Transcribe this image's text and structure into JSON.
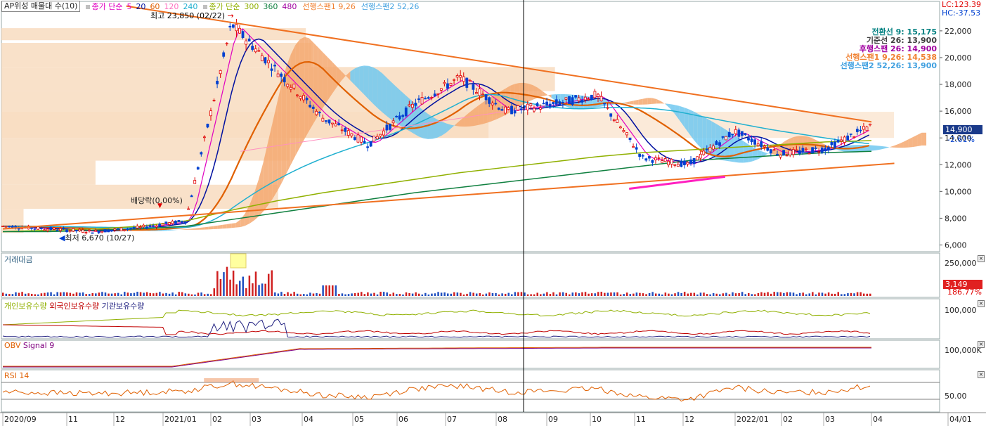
{
  "header": {
    "title": "AP위성 매물대 수(10)",
    "ma_label": "종가 단순",
    "ma_periods": [
      {
        "label": "5",
        "color": "#e000c0"
      },
      {
        "label": "20",
        "color": "#0010a0"
      },
      {
        "label": "60",
        "color": "#e06000"
      },
      {
        "label": "120",
        "color": "#ff70c0"
      },
      {
        "label": "240",
        "color": "#20b0d0"
      }
    ],
    "ma2_label": "종가 단순",
    "ma2_periods": [
      {
        "label": "300",
        "color": "#90b000"
      },
      {
        "label": "360",
        "color": "#108040"
      },
      {
        "label": "480",
        "color": "#a000a0"
      }
    ],
    "span1": "선행스팬1 9,26",
    "span2": "선행스팬2 52,26"
  },
  "ichimoku_legend": [
    {
      "text": "전환선 9: 15,175",
      "color": "#008080"
    },
    {
      "text": "기준선 26: 13,900",
      "color": "#404040"
    },
    {
      "text": "후행스팬 26: 14,900",
      "color": "#a000a0"
    },
    {
      "text": "선행스팬1 9,26: 14,538",
      "color": "#f08030"
    },
    {
      "text": "선행스팬2 52,26: 13,900",
      "color": "#40a0e0"
    }
  ],
  "top_right": {
    "lc": "LC:123.39",
    "hc": "HC:-37.53"
  },
  "annotations": {
    "high": "최고 23,850 (02/22)",
    "low": "최저 6,670 (10/27)",
    "dividend": "배당락(0.00%)"
  },
  "price_tag": {
    "price": "14,900",
    "change": "-2.61%"
  },
  "volume_tag": {
    "value": "3,149",
    "change": "186.77%"
  },
  "panels": {
    "volume": "거래대금",
    "holders": [
      {
        "text": "개인보유수량",
        "color": "#90b000"
      },
      {
        "text": "외국인보유수량",
        "color": "#c00000"
      },
      {
        "text": "기관보유수량",
        "color": "#202080"
      }
    ],
    "obv": [
      {
        "text": "OBV",
        "color": "#e06000"
      },
      {
        "text": "Signal 9",
        "color": "#800080"
      }
    ],
    "rsi": "RSI 14"
  },
  "colors": {
    "up": "#e00000",
    "down": "#0040d0",
    "span1": "#f08030",
    "span2": "#40a0e0"
  },
  "chart_data": {
    "type": "line",
    "title": "AP위성",
    "x_tick_labels": [
      "2020/09",
      "11",
      "12",
      "2021/01",
      "02",
      "03",
      "04",
      "05",
      "06",
      "07",
      "08",
      "09",
      "10",
      "11",
      "12",
      "2022/01",
      "02",
      "03",
      "04",
      "04/01"
    ],
    "price_axis": {
      "ticks": [
        "22,000",
        "20,000",
        "18,000",
        "16,000",
        "14,000",
        "12,000",
        "10,000",
        "8,000",
        "6,000"
      ],
      "range": [
        5500,
        24200
      ]
    },
    "volume_axis": {
      "ticks": [
        "250,000"
      ]
    },
    "holders_axis": {
      "ticks": [
        "100,000"
      ]
    },
    "obv_axis": {
      "ticks": [
        "100,000K"
      ]
    },
    "rsi_axis": {
      "ticks": [
        "50.00"
      ]
    },
    "price_series": {
      "name": "종가",
      "months": [
        0,
        1,
        2,
        3,
        4,
        5,
        6,
        7,
        8,
        9,
        10,
        11,
        12,
        13,
        14,
        15,
        16,
        17,
        18,
        19
      ],
      "values": [
        7400,
        7200,
        7000,
        7300,
        7800,
        22500,
        19000,
        15500,
        13500,
        16500,
        18500,
        16000,
        16500,
        17200,
        12500,
        12000,
        14500,
        12800,
        13200,
        14900
      ]
    },
    "volume_profile": [
      {
        "price_from": 21300,
        "price_to": 22200,
        "weight": 0.55
      },
      {
        "price_from": 19300,
        "price_to": 21100,
        "weight": 0.56
      },
      {
        "price_from": 17500,
        "price_to": 19300,
        "weight": 1.0
      },
      {
        "price_from": 15700,
        "price_to": 17500,
        "weight": 0.9
      },
      {
        "price_from": 14000,
        "price_to": 15700,
        "weight": 0.88
      },
      {
        "price_from": 12300,
        "price_to": 14000,
        "weight": 0.52
      },
      {
        "price_from": 10500,
        "price_to": 12300,
        "weight": 0.17
      },
      {
        "price_from": 8700,
        "price_to": 10500,
        "weight": 0.5
      },
      {
        "price_from": 6900,
        "price_to": 8700,
        "weight": 0.04
      }
    ],
    "trendlines": [
      {
        "from": [
          2.7,
          23850
        ],
        "to": [
          19,
          15200
        ]
      },
      {
        "from": [
          0,
          7200
        ],
        "to": [
          19.5,
          12100
        ]
      }
    ],
    "rsi_values": [
      48,
      45,
      44,
      46,
      50,
      68,
      55,
      40,
      35,
      55,
      62,
      48,
      50,
      55,
      35,
      30,
      58,
      45,
      48,
      62
    ],
    "ma_long": [
      {
        "name": "300",
        "values": [
          7000,
          7100,
          7200,
          7400,
          7800,
          8600,
          9300,
          9900,
          10400,
          10900,
          11400,
          11800,
          12200,
          12600,
          12900,
          13100,
          13300,
          13500,
          13700,
          13800
        ]
      },
      {
        "name": "360",
        "values": [
          7000,
          7000,
          7100,
          7200,
          7400,
          7900,
          8400,
          8900,
          9400,
          9900,
          10300,
          10700,
          11100,
          11500,
          11900,
          12300,
          12500,
          12700,
          12900,
          13000
        ]
      }
    ]
  }
}
